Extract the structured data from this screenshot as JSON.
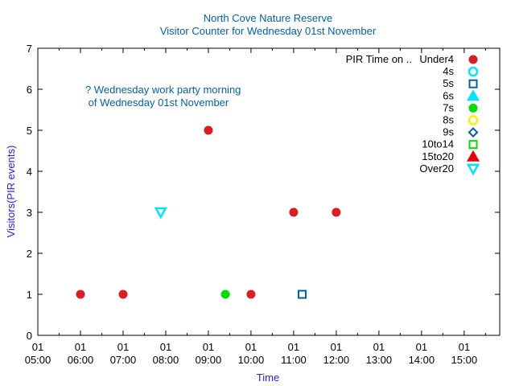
{
  "chart_data": {
    "type": "scatter",
    "title": "North Cove Nature Reserve",
    "subtitle": "Visitor Counter for Wednesday 01st November",
    "xlabel": "Time",
    "ylabel": "Visitors(PIR events)",
    "xlim": [
      "05:00",
      "15:50"
    ],
    "ylim": [
      0,
      7
    ],
    "x_ticks": [
      {
        "day": "01",
        "time": "05:00"
      },
      {
        "day": "01",
        "time": "06:00"
      },
      {
        "day": "01",
        "time": "07:00"
      },
      {
        "day": "01",
        "time": "08:00"
      },
      {
        "day": "01",
        "time": "09:00"
      },
      {
        "day": "01",
        "time": "10:00"
      },
      {
        "day": "01",
        "time": "11:00"
      },
      {
        "day": "01",
        "time": "12:00"
      },
      {
        "day": "01",
        "time": "13:00"
      },
      {
        "day": "01",
        "time": "14:00"
      },
      {
        "day": "01",
        "time": "15:00"
      }
    ],
    "y_ticks": [
      "0",
      "1",
      "2",
      "3",
      "4",
      "5",
      "6",
      "7"
    ],
    "annotation": [
      "? Wednesday work party morning",
      " of Wednesday 01st November"
    ],
    "legend_title": "PIR Time on ..",
    "legend_position": "top-right",
    "series": [
      {
        "name": "Under4",
        "marker": "filled-circle",
        "color": "#dd1c24",
        "points": [
          [
            "06:00",
            1
          ],
          [
            "07:00",
            1
          ],
          [
            "09:00",
            5
          ],
          [
            "10:00",
            1
          ],
          [
            "11:00",
            3
          ],
          [
            "12:00",
            3
          ]
        ]
      },
      {
        "name": "4s",
        "marker": "open-circle",
        "color": "#00e5ff",
        "points": []
      },
      {
        "name": "5s",
        "marker": "open-square",
        "color": "#0060ad",
        "points": [
          [
            "11:12",
            1
          ]
        ]
      },
      {
        "name": "6s",
        "marker": "filled-triangle-up",
        "color": "#00e5ff",
        "points": []
      },
      {
        "name": "7s",
        "marker": "filled-circle",
        "color": "#00e000",
        "points": [
          [
            "09:24",
            1
          ]
        ]
      },
      {
        "name": "8s",
        "marker": "open-circle",
        "color": "#ffee00",
        "points": []
      },
      {
        "name": "9s",
        "marker": "open-diamond",
        "color": "#0060ad",
        "points": []
      },
      {
        "name": "10to14",
        "marker": "open-square",
        "color": "#00e000",
        "points": []
      },
      {
        "name": "15to20",
        "marker": "filled-triangle-up",
        "color": "#ee0000",
        "points": []
      },
      {
        "name": "Over20",
        "marker": "open-triangle-down",
        "color": "#00e5ff",
        "points": [
          [
            "07:53",
            3
          ]
        ]
      }
    ]
  }
}
